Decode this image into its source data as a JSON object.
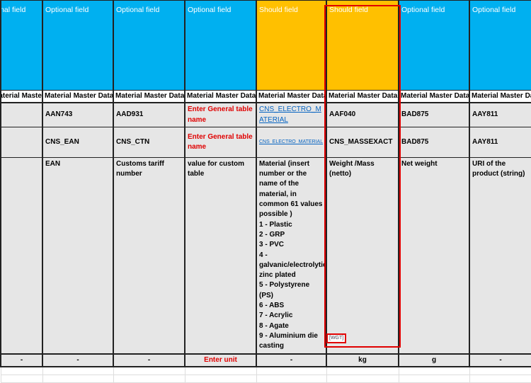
{
  "columns": [
    {
      "type": "Optional field",
      "mmd": "Material Master Data",
      "code": "",
      "table": "",
      "desc": "",
      "unit": "-"
    },
    {
      "type": "Optional field",
      "mmd": "Material Master Data",
      "code": "AAN743",
      "table": "CNS_EAN",
      "desc": "EAN",
      "unit": "-"
    },
    {
      "type": "Optional field",
      "mmd": "Material Master Data",
      "code": "AAD931",
      "table": "CNS_CTN",
      "desc": "Customs tariff number",
      "unit": "-"
    },
    {
      "type": "Optional field",
      "mmd": "Material Master Data",
      "code": "Enter General table name",
      "table": "Enter General table name",
      "desc": "value for custom table",
      "unit": "Enter unit"
    },
    {
      "type": "Should field",
      "mmd": "Material Master Data",
      "code": "CNS_ELECTRO_MATERIAL",
      "table": "CNS_ELECTRO_MATERIAL",
      "desc": [
        "Material  (insert number or the name of the material, in common 61 values possible )",
        "1 - Plastic",
        "2 - GRP",
        "3 - PVC",
        "4 - galvanic/electrolytic zinc plated",
        "5 - Polystyrene (PS)",
        "6 - ABS",
        "7 - Acrylic",
        "8 - Agate",
        "9 - Aluminium die casting"
      ],
      "unit": "-"
    },
    {
      "type": "Should field",
      "mmd": "Material Master Data",
      "code": "AAF040",
      "table": "CNS_MASSEXACT",
      "desc": "Weight /Mass (netto)",
      "unit": "kg"
    },
    {
      "type": "Optional field",
      "mmd": "Material Master Data",
      "code": "BAD875",
      "table": "BAD875",
      "desc": "Net weight",
      "unit": "g"
    },
    {
      "type": "Optional field",
      "mmd": "Material Master Data",
      "code": "AAY811",
      "table": "AAY811",
      "desc": "URI of the product (string)",
      "unit": "-"
    }
  ],
  "below": {
    "tag": "[WGT]"
  },
  "colors": {
    "optional": "#00b0f0",
    "should": "#ffc000",
    "highlight": "#e00000"
  }
}
